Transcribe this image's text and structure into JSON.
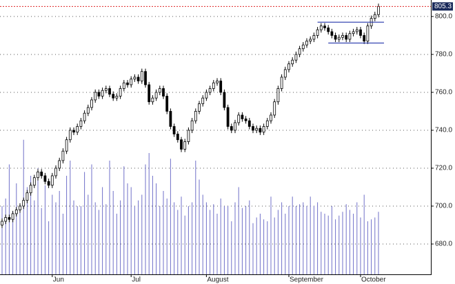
{
  "chart_data": {
    "type": "candlestick",
    "categories": [
      null,
      null,
      null,
      null,
      null,
      null,
      null,
      null,
      null,
      null,
      null,
      null,
      null,
      null,
      "Jun",
      null,
      null,
      null,
      null,
      null,
      null,
      null,
      null,
      null,
      null,
      null,
      null,
      null,
      null,
      null,
      null,
      null,
      null,
      null,
      null,
      null,
      "Jul",
      null,
      null,
      null,
      null,
      null,
      null,
      null,
      null,
      null,
      null,
      null,
      null,
      null,
      null,
      null,
      null,
      null,
      null,
      null,
      null,
      "August",
      null,
      null,
      null,
      null,
      null,
      null,
      null,
      null,
      null,
      null,
      null,
      null,
      null,
      null,
      null,
      null,
      null,
      null,
      null,
      null,
      null,
      null,
      "September",
      null,
      null,
      null,
      null,
      null,
      null,
      null,
      null,
      null,
      null,
      null,
      null,
      null,
      null,
      null,
      null,
      null,
      null,
      null,
      "October",
      null,
      null,
      null,
      null,
      null
    ],
    "open": [
      690,
      692,
      694,
      693,
      696,
      698,
      700,
      703,
      707,
      711,
      715,
      718,
      716,
      713,
      711,
      716,
      720,
      724,
      729,
      735,
      740,
      739,
      742,
      745,
      749,
      752,
      756,
      760,
      758,
      761,
      762,
      759,
      757,
      758,
      762,
      765,
      764,
      767,
      768,
      766,
      771,
      764,
      755,
      757,
      760,
      762,
      758,
      750,
      742,
      738,
      735,
      730,
      734,
      740,
      745,
      750,
      754,
      757,
      760,
      762,
      765,
      766,
      760,
      752,
      742,
      740,
      744,
      748,
      746,
      745,
      742,
      740,
      741,
      739,
      742,
      745,
      748,
      755,
      762,
      768,
      772,
      775,
      777,
      780,
      783,
      785,
      787,
      788,
      790,
      793,
      795,
      794,
      792,
      790,
      788,
      789,
      790,
      788,
      791,
      792,
      793,
      790,
      787,
      795,
      799,
      801
    ],
    "high": [
      693.5,
      695.5,
      695.5,
      697.5,
      699.5,
      701.5,
      704.5,
      708.5,
      712.5,
      716.5,
      719.5,
      719.5,
      717.5,
      714.5,
      717.5,
      721.5,
      725.5,
      730.5,
      736.5,
      741.5,
      741.5,
      743.5,
      746.5,
      750.5,
      753.5,
      757.5,
      761.5,
      761.5,
      762.5,
      763.5,
      763.5,
      760.5,
      759.5,
      763.5,
      766.5,
      766.5,
      768.5,
      769.5,
      769.5,
      772.5,
      772.5,
      765.5,
      758.5,
      761.5,
      763.5,
      763.5,
      759.5,
      751.5,
      743.5,
      739.5,
      736.5,
      735.5,
      741.5,
      746.5,
      751.5,
      755.5,
      758.5,
      761.5,
      763.5,
      766.5,
      767.5,
      767.5,
      761.5,
      753.5,
      743.5,
      745.5,
      749.5,
      749.5,
      747.5,
      746.5,
      743.5,
      742.5,
      742.5,
      743.5,
      746.5,
      749.5,
      756.5,
      763.5,
      769.5,
      773.5,
      776.5,
      778.5,
      781.5,
      784.5,
      786.5,
      788.5,
      789.5,
      791.5,
      794.5,
      796.5,
      796.5,
      795.5,
      793.5,
      791.5,
      790.5,
      791.5,
      791.5,
      792.5,
      793.5,
      794.5,
      794.5,
      791.5,
      796.5,
      800.5,
      802.5,
      806.8
    ],
    "low": [
      688.5,
      690.5,
      691.5,
      691.5,
      694.5,
      696.5,
      698.5,
      701.5,
      705.5,
      709.5,
      713.5,
      714.5,
      711.5,
      709.5,
      709.5,
      714.5,
      718.5,
      722.5,
      727.5,
      733.5,
      737.5,
      737.5,
      740.5,
      743.5,
      747.5,
      750.5,
      754.5,
      756.5,
      756.5,
      759.5,
      757.5,
      755.5,
      755.5,
      756.5,
      760.5,
      762.5,
      762.5,
      765.5,
      764.5,
      764.5,
      762.5,
      753.5,
      753.5,
      755.5,
      758.5,
      756.5,
      748.5,
      740.5,
      736.5,
      733.5,
      728.5,
      728.5,
      732.5,
      738.5,
      743.5,
      748.5,
      752.5,
      755.5,
      758.5,
      760.5,
      763.5,
      758.5,
      750.5,
      740.5,
      738.5,
      738.5,
      742.5,
      744.5,
      743.5,
      740.5,
      738.5,
      738.5,
      737.5,
      737.5,
      740.5,
      743.5,
      746.5,
      753.5,
      760.5,
      766.5,
      770.5,
      773.5,
      775.5,
      778.5,
      781.5,
      783.5,
      785.5,
      786.5,
      788.5,
      791.5,
      792.5,
      790.5,
      788.5,
      786.5,
      786.5,
      787.5,
      786.5,
      786.5,
      789.5,
      790.5,
      788.5,
      785.5,
      785.5,
      793.5,
      797.5,
      799.5
    ],
    "close": [
      692,
      694,
      693,
      696,
      698,
      700,
      703,
      707,
      711,
      715,
      718,
      716,
      713,
      711,
      716,
      720,
      724,
      729,
      735,
      740,
      739,
      742,
      745,
      749,
      752,
      756,
      760,
      758,
      761,
      762,
      759,
      757,
      758,
      762,
      765,
      764,
      767,
      768,
      766,
      771,
      764,
      755,
      757,
      760,
      762,
      758,
      750,
      742,
      738,
      735,
      730,
      734,
      740,
      745,
      750,
      754,
      757,
      760,
      762,
      765,
      766,
      760,
      752,
      742,
      740,
      744,
      748,
      746,
      745,
      742,
      740,
      741,
      739,
      742,
      745,
      748,
      755,
      762,
      768,
      772,
      775,
      777,
      780,
      783,
      785,
      787,
      788,
      790,
      793,
      795,
      794,
      792,
      790,
      788,
      789,
      790,
      788,
      791,
      792,
      793,
      790,
      787,
      795,
      799,
      801,
      805.3
    ],
    "volume": [
      700,
      704,
      722,
      697,
      712,
      701,
      735,
      710,
      716,
      703,
      720,
      699,
      711,
      692,
      706,
      702,
      708,
      696,
      716,
      724,
      703,
      700,
      700,
      718,
      706,
      722,
      702,
      698,
      710,
      701,
      724,
      708,
      696,
      703,
      721,
      712,
      710,
      700,
      703,
      706,
      722,
      728,
      716,
      712,
      700,
      708,
      704,
      725,
      702,
      698,
      705,
      695,
      700,
      702,
      724,
      714,
      706,
      702,
      698,
      701,
      696,
      704,
      700,
      700,
      692,
      702,
      710,
      699,
      700,
      703,
      691,
      694,
      696,
      693,
      692,
      705,
      694,
      698,
      702,
      696,
      700,
      705,
      700,
      701,
      702,
      700,
      705,
      700,
      702,
      697,
      696,
      695,
      700,
      693,
      695,
      697,
      701,
      698,
      696,
      702,
      694,
      706,
      692,
      693,
      694,
      697
    ],
    "last_label": "805.3",
    "channel": [
      {
        "value": 797,
        "from": 88
      },
      {
        "value": 786,
        "from": 91
      }
    ],
    "up_color": "#ffffff",
    "down_color": "#000000",
    "volume_color": "#6f6fc8",
    "channel_color": "#2233aa",
    "last_line_color": "#dd2222",
    "ylim": [
      664,
      808.7
    ],
    "yticks": [
      {
        "value": 680,
        "label": "680.0"
      },
      {
        "value": 700,
        "label": "700.0"
      },
      {
        "value": 720,
        "label": "720.0"
      },
      {
        "value": 740,
        "label": "740.0"
      },
      {
        "value": 760,
        "label": "760.0"
      },
      {
        "value": 780,
        "label": "780.0"
      },
      {
        "value": 800,
        "label": "800.0"
      }
    ],
    "grid": true
  }
}
